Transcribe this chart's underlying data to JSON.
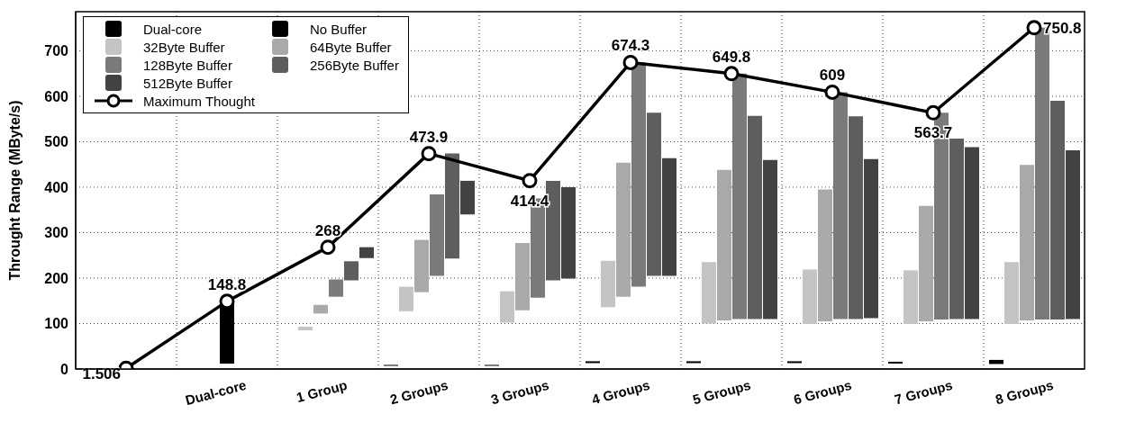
{
  "chart_data": {
    "type": "bar",
    "ylabel": "Throught Range (MByte/s)",
    "categories": [
      null,
      "Dual-core",
      "1 Group",
      "2 Groups",
      "3 Groups",
      "4 Groups",
      "5 Groups",
      "6 Groups",
      "7 Groups",
      "8 Groups"
    ],
    "ylim": [
      0,
      786
    ],
    "yticks": [
      0,
      100,
      200,
      300,
      400,
      500,
      600,
      700
    ],
    "grid": true,
    "legend": "top left",
    "series": [
      {
        "name": "Dual-core",
        "color": "#000000",
        "values": [
          null,
          137,
          null,
          null,
          null,
          null,
          null,
          null,
          null,
          null
        ],
        "base": [
          null,
          12,
          null,
          null,
          null,
          null,
          null,
          null,
          null,
          null
        ]
      },
      {
        "name": "No Buffer",
        "color": "#000000",
        "values": [
          null,
          null,
          null,
          2,
          2,
          4,
          4,
          4,
          4,
          9
        ],
        "base": [
          null,
          null,
          null,
          7,
          7,
          13,
          13,
          13,
          12,
          11
        ]
      },
      {
        "name": "32Byte Buffer",
        "color": "#c4c4c4",
        "values": [
          null,
          null,
          8,
          54,
          69,
          102,
          135,
          120,
          118,
          136
        ],
        "base": [
          null,
          null,
          85,
          127,
          102,
          136,
          100,
          99,
          99,
          99
        ]
      },
      {
        "name": "64Byte Buffer",
        "color": "#a9a9a9",
        "values": [
          null,
          null,
          19,
          115,
          148,
          295,
          331,
          290,
          254,
          342
        ],
        "base": [
          null,
          null,
          122,
          169,
          129,
          159,
          107,
          105,
          105,
          107
        ]
      },
      {
        "name": "128Byte Buffer",
        "color": "#7a7a7a",
        "values": [
          null,
          null,
          38,
          179,
          218,
          493,
          540,
          499,
          455,
          642
        ],
        "base": [
          null,
          null,
          159,
          205,
          157,
          181,
          110,
          110,
          109,
          109
        ]
      },
      {
        "name": "256Byte Buffer",
        "color": "#5e5e5e",
        "values": [
          null,
          null,
          42,
          231,
          219,
          359,
          447,
          446,
          397,
          481
        ],
        "base": [
          null,
          null,
          195,
          243,
          195,
          205,
          110,
          110,
          110,
          109
        ]
      },
      {
        "name": "512Byte Buffer",
        "color": "#424242",
        "values": [
          null,
          null,
          24,
          74,
          201,
          259,
          350,
          350,
          378,
          371
        ],
        "base": [
          null,
          null,
          244,
          340,
          199,
          205,
          110,
          112,
          110,
          110
        ]
      },
      {
        "name": "Maximum Thought",
        "type": "line",
        "color": "#000000",
        "marker": "circle",
        "line_style": "solid",
        "values": [
          1.506,
          148.8,
          268,
          473.9,
          414.4,
          674.3,
          649.8,
          609,
          563.7,
          750.8
        ],
        "value_labels": [
          "1.506",
          "148.8",
          "268",
          "473.9",
          "414.4",
          "674.3",
          "649.8",
          "609",
          "563.7",
          "750.8"
        ]
      }
    ]
  }
}
